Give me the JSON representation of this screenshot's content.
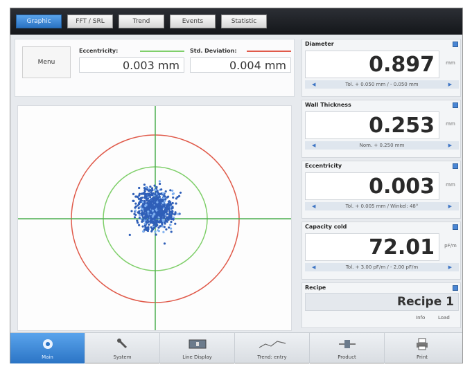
{
  "tabs": [
    "Graphic",
    "FFT / SRL",
    "Trend",
    "Events",
    "Statistic"
  ],
  "menu_label": "Menu",
  "eccentricity_stat": {
    "label": "Eccentricity:",
    "value": "0.003 mm",
    "color": "#7fcf6a"
  },
  "std_dev_stat": {
    "label": "Std. Deviation:",
    "value": "0.004 mm",
    "color": "#e05a4a"
  },
  "measurements": [
    {
      "title": "Diameter",
      "value": "0.897",
      "unit": "mm",
      "tolerance": "Tol. + 0.050 mm / - 0.050 mm"
    },
    {
      "title": "Wall Thickness",
      "value": "0.253",
      "unit": "mm",
      "tolerance": "Nom. + 0.250 mm"
    },
    {
      "title": "Eccentricity",
      "value": "0.003",
      "unit": "mm",
      "tolerance": "Tol. + 0.005 mm / Winkel: 48°"
    },
    {
      "title": "Capacity cold",
      "value": "72.01",
      "unit": "pF/m",
      "tolerance": "Tol. + 3.00 pF/m / - 2.00 pF/m"
    }
  ],
  "recipe": {
    "title": "Recipe",
    "name": "Recipe 1",
    "info": "Info",
    "load": "Load"
  },
  "nav": [
    {
      "label": "Main",
      "icon": "home-icon"
    },
    {
      "label": "System",
      "icon": "wrench-icon"
    },
    {
      "label": "Line Display",
      "icon": "line-display-icon"
    },
    {
      "label": "Trend: entry",
      "icon": "trend-icon"
    },
    {
      "label": "Product",
      "icon": "product-icon"
    },
    {
      "label": "Print",
      "icon": "print-icon"
    }
  ],
  "colors": {
    "accent": "#3a86d6",
    "outer_circle": "#e05a4a",
    "inner_circle": "#7fcf6a",
    "crosshair": "#4caf50",
    "points": "#2f5fb8"
  }
}
